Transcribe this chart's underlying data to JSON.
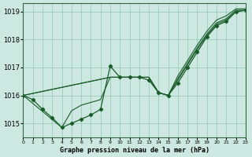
{
  "title": "Graphe pression niveau de la mer (hPa)",
  "bg": "#cce8e0",
  "grid_color": "#99ccbb",
  "lc": "#1a5c2a",
  "xlim": [
    0,
    23
  ],
  "ylim": [
    1014.5,
    1019.3
  ],
  "yticks": [
    1015,
    1016,
    1017,
    1018,
    1019
  ],
  "lines": [
    {
      "x": [
        0,
        1,
        2,
        3,
        4,
        5,
        6,
        7,
        8,
        9,
        10,
        11,
        12,
        13,
        14,
        15,
        16,
        17,
        18,
        19,
        20,
        21,
        22,
        23
      ],
      "y": [
        1016.0,
        1015.85,
        1015.5,
        1015.2,
        1014.85,
        1015.0,
        1015.15,
        1015.3,
        1015.5,
        1017.05,
        1016.65,
        1016.65,
        1016.65,
        1016.55,
        1016.1,
        1016.0,
        1016.45,
        1017.0,
        1017.55,
        1018.1,
        1018.5,
        1018.65,
        1019.0,
        1019.05
      ],
      "marker": true
    },
    {
      "x": [
        0,
        9,
        10,
        11,
        12,
        13,
        14,
        15,
        16,
        17,
        18,
        19,
        20,
        21,
        22,
        23
      ],
      "y": [
        1016.0,
        1016.65,
        1016.65,
        1016.65,
        1016.65,
        1016.65,
        1016.1,
        1016.0,
        1016.6,
        1017.15,
        1017.7,
        1018.2,
        1018.6,
        1018.75,
        1019.05,
        1019.05
      ],
      "marker": false
    },
    {
      "x": [
        0,
        9,
        10,
        11,
        12,
        13,
        14,
        15,
        16,
        17,
        18,
        19,
        20,
        21,
        22,
        23
      ],
      "y": [
        1016.0,
        1016.65,
        1016.65,
        1016.65,
        1016.65,
        1016.65,
        1016.1,
        1016.0,
        1016.7,
        1017.25,
        1017.8,
        1018.3,
        1018.7,
        1018.85,
        1019.1,
        1019.1
      ],
      "marker": false
    },
    {
      "x": [
        0,
        4,
        5,
        6,
        7,
        8,
        9,
        10,
        11,
        12,
        13,
        14,
        15,
        16,
        17,
        18,
        19,
        20,
        21,
        22,
        23
      ],
      "y": [
        1016.0,
        1014.85,
        1015.45,
        1015.65,
        1015.75,
        1015.85,
        1016.65,
        1016.65,
        1016.65,
        1016.65,
        1016.65,
        1016.1,
        1016.0,
        1016.55,
        1017.1,
        1017.65,
        1018.15,
        1018.55,
        1018.7,
        1019.0,
        1019.05
      ],
      "marker": false
    }
  ]
}
